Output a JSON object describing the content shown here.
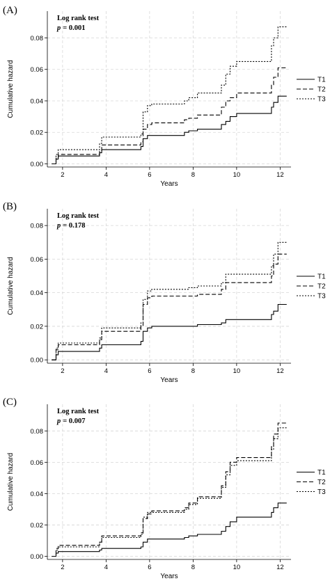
{
  "chart_data": [
    {
      "type": "line",
      "panel_label": "(A)",
      "annotation_title": "Log rank test",
      "annotation_p_symbol": "p",
      "annotation_p_value": "= 0.001",
      "xlabel": "Years",
      "ylabel": "Cumulative hazard",
      "xlim": [
        1.3,
        12.5
      ],
      "ylim": [
        -0.002,
        0.097
      ],
      "xticks": [
        2,
        4,
        6,
        8,
        10,
        12
      ],
      "yticks": [
        "0.00",
        "0.02",
        "0.04",
        "0.06",
        "0.08"
      ],
      "grid": true,
      "legend_position": "right",
      "series": [
        {
          "name": "T1",
          "dash": "solid",
          "x": [
            1.5,
            1.7,
            1.8,
            3.7,
            3.8,
            5.6,
            5.7,
            5.9,
            6.1,
            7.6,
            7.8,
            8.2,
            9.3,
            9.5,
            9.7,
            10.0,
            11.6,
            11.7,
            11.9,
            12.3
          ],
          "y": [
            0.0,
            0.003,
            0.005,
            0.007,
            0.009,
            0.011,
            0.016,
            0.018,
            0.018,
            0.02,
            0.021,
            0.022,
            0.025,
            0.027,
            0.03,
            0.032,
            0.036,
            0.039,
            0.043,
            0.043
          ]
        },
        {
          "name": "T2",
          "dash": "dashed",
          "x": [
            1.5,
            1.7,
            1.8,
            3.7,
            3.8,
            5.6,
            5.7,
            5.9,
            6.1,
            7.6,
            7.8,
            8.2,
            9.3,
            9.5,
            9.7,
            10.0,
            11.6,
            11.7,
            11.9,
            12.3
          ],
          "y": [
            0.0,
            0.004,
            0.006,
            0.008,
            0.012,
            0.014,
            0.022,
            0.025,
            0.026,
            0.028,
            0.029,
            0.031,
            0.036,
            0.04,
            0.042,
            0.045,
            0.05,
            0.055,
            0.061,
            0.061
          ]
        },
        {
          "name": "T3",
          "dash": "dotted",
          "x": [
            1.5,
            1.7,
            1.8,
            3.7,
            3.8,
            5.6,
            5.7,
            5.9,
            6.1,
            7.6,
            7.8,
            8.2,
            9.3,
            9.5,
            9.7,
            10.0,
            11.6,
            11.7,
            11.9,
            12.3
          ],
          "y": [
            0.0,
            0.006,
            0.009,
            0.013,
            0.017,
            0.019,
            0.033,
            0.037,
            0.038,
            0.04,
            0.042,
            0.045,
            0.05,
            0.057,
            0.062,
            0.065,
            0.075,
            0.08,
            0.087,
            0.087
          ]
        }
      ]
    },
    {
      "type": "line",
      "panel_label": "(B)",
      "annotation_title": "Log rank test",
      "annotation_p_symbol": "p",
      "annotation_p_value": "= 0.178",
      "xlabel": "Years",
      "ylabel": "Cumulative hazard",
      "xlim": [
        1.3,
        12.5
      ],
      "ylim": [
        -0.002,
        0.09
      ],
      "xticks": [
        2,
        4,
        6,
        8,
        10,
        12
      ],
      "yticks": [
        "0.00",
        "0.02",
        "0.04",
        "0.06",
        "0.08"
      ],
      "grid": true,
      "legend_position": "right",
      "series": [
        {
          "name": "T1",
          "dash": "solid",
          "x": [
            1.5,
            1.7,
            1.8,
            3.7,
            3.8,
            5.6,
            5.7,
            5.9,
            6.1,
            7.6,
            7.8,
            8.2,
            9.3,
            9.5,
            9.7,
            10.0,
            11.6,
            11.7,
            11.9,
            12.3
          ],
          "y": [
            0.0,
            0.003,
            0.005,
            0.007,
            0.009,
            0.011,
            0.017,
            0.019,
            0.02,
            0.02,
            0.02,
            0.021,
            0.022,
            0.024,
            0.024,
            0.024,
            0.027,
            0.029,
            0.033,
            0.033
          ]
        },
        {
          "name": "T2",
          "dash": "dashed",
          "x": [
            1.5,
            1.7,
            1.8,
            3.7,
            3.8,
            5.6,
            5.7,
            5.9,
            6.1,
            7.6,
            7.8,
            8.2,
            9.3,
            9.5,
            9.7,
            10.0,
            11.6,
            11.7,
            11.9,
            12.3
          ],
          "y": [
            0.0,
            0.006,
            0.009,
            0.012,
            0.017,
            0.02,
            0.033,
            0.037,
            0.038,
            0.038,
            0.038,
            0.039,
            0.042,
            0.046,
            0.046,
            0.046,
            0.05,
            0.057,
            0.063,
            0.063
          ]
        },
        {
          "name": "T3",
          "dash": "dotted",
          "x": [
            1.5,
            1.7,
            1.8,
            3.7,
            3.8,
            5.6,
            5.7,
            5.9,
            6.1,
            7.6,
            7.8,
            8.2,
            9.3,
            9.5,
            9.7,
            10.0,
            11.6,
            11.7,
            11.9,
            12.3
          ],
          "y": [
            0.0,
            0.007,
            0.01,
            0.013,
            0.019,
            0.022,
            0.036,
            0.041,
            0.042,
            0.042,
            0.043,
            0.044,
            0.046,
            0.051,
            0.051,
            0.051,
            0.056,
            0.063,
            0.07,
            0.07
          ]
        }
      ]
    },
    {
      "type": "line",
      "panel_label": "(C)",
      "annotation_title": "Log rank test",
      "annotation_p_symbol": "p",
      "annotation_p_value": "= 0.007",
      "xlabel": "Years",
      "ylabel": "Cumulative hazard",
      "xlim": [
        1.3,
        12.5
      ],
      "ylim": [
        -0.002,
        0.097
      ],
      "xticks": [
        2,
        4,
        6,
        8,
        10,
        12
      ],
      "yticks": [
        "0.00",
        "0.02",
        "0.04",
        "0.06",
        "0.08"
      ],
      "grid": true,
      "legend_position": "right",
      "series": [
        {
          "name": "T1",
          "dash": "solid",
          "x": [
            1.5,
            1.7,
            1.8,
            3.7,
            3.8,
            5.6,
            5.7,
            5.9,
            6.1,
            7.6,
            7.8,
            8.2,
            9.3,
            9.5,
            9.7,
            10.0,
            11.6,
            11.7,
            11.9,
            12.3
          ],
          "y": [
            0.0,
            0.002,
            0.003,
            0.004,
            0.005,
            0.006,
            0.009,
            0.011,
            0.011,
            0.012,
            0.013,
            0.014,
            0.016,
            0.019,
            0.022,
            0.025,
            0.028,
            0.031,
            0.034,
            0.034
          ]
        },
        {
          "name": "T2",
          "dash": "dashed",
          "x": [
            1.5,
            1.7,
            1.8,
            3.7,
            3.8,
            5.6,
            5.7,
            5.9,
            6.1,
            7.6,
            7.8,
            8.2,
            9.3,
            9.5,
            9.7,
            10.0,
            11.6,
            11.7,
            11.9,
            12.3
          ],
          "y": [
            0.0,
            0.005,
            0.007,
            0.009,
            0.013,
            0.015,
            0.024,
            0.027,
            0.029,
            0.031,
            0.034,
            0.038,
            0.045,
            0.054,
            0.06,
            0.063,
            0.07,
            0.078,
            0.085,
            0.085
          ]
        },
        {
          "name": "T3",
          "dash": "dotted",
          "x": [
            1.5,
            1.7,
            1.8,
            3.7,
            3.8,
            5.6,
            5.7,
            5.9,
            6.1,
            7.6,
            7.8,
            8.2,
            9.3,
            9.5,
            9.7,
            10.0,
            11.6,
            11.7,
            11.9,
            12.3
          ],
          "y": [
            0.0,
            0.004,
            0.006,
            0.009,
            0.012,
            0.014,
            0.025,
            0.028,
            0.028,
            0.03,
            0.033,
            0.037,
            0.044,
            0.052,
            0.058,
            0.061,
            0.068,
            0.075,
            0.082,
            0.082
          ]
        }
      ]
    }
  ]
}
